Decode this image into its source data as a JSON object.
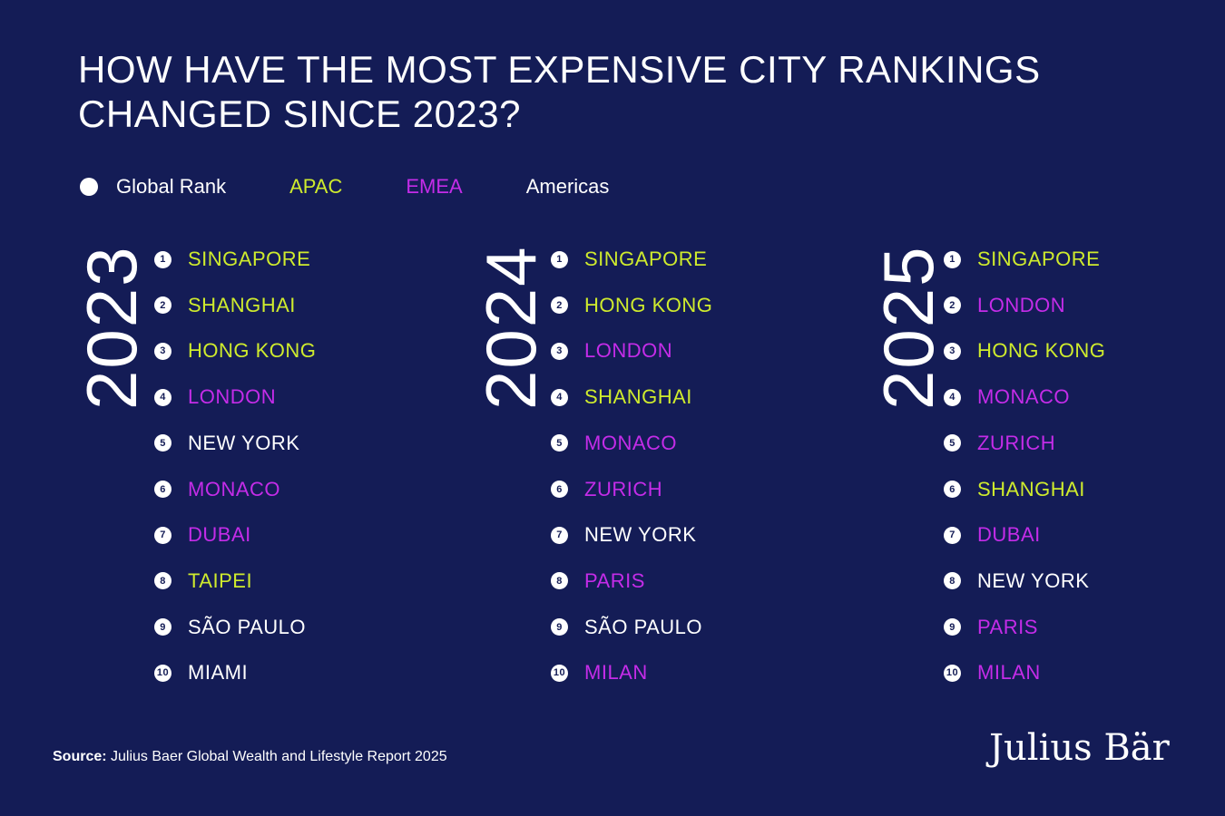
{
  "title_line1": "HOW HAVE THE MOST EXPENSIVE CITY RANKINGS",
  "title_line2": "CHANGED SINCE 2023?",
  "colors": {
    "background": "#141c56",
    "APAC": "#cfeb2d",
    "EMEA": "#c42ce8",
    "Americas": "#ffffff"
  },
  "legend": {
    "global_rank": "Global Rank",
    "apac": "APAC",
    "emea": "EMEA",
    "americas": "Americas"
  },
  "rankings": [
    {
      "year": "2023",
      "cities": [
        {
          "rank": "1",
          "name": "SINGAPORE",
          "region": "APAC"
        },
        {
          "rank": "2",
          "name": "SHANGHAI",
          "region": "APAC"
        },
        {
          "rank": "3",
          "name": "HONG KONG",
          "region": "APAC"
        },
        {
          "rank": "4",
          "name": "LONDON",
          "region": "EMEA"
        },
        {
          "rank": "5",
          "name": "NEW YORK",
          "region": "Americas"
        },
        {
          "rank": "6",
          "name": "MONACO",
          "region": "EMEA"
        },
        {
          "rank": "7",
          "name": "DUBAI",
          "region": "EMEA"
        },
        {
          "rank": "8",
          "name": "TAIPEI",
          "region": "APAC"
        },
        {
          "rank": "9",
          "name": "SÃO PAULO",
          "region": "Americas"
        },
        {
          "rank": "10",
          "name": "MIAMI",
          "region": "Americas"
        }
      ]
    },
    {
      "year": "2024",
      "cities": [
        {
          "rank": "1",
          "name": "SINGAPORE",
          "region": "APAC"
        },
        {
          "rank": "2",
          "name": "HONG KONG",
          "region": "APAC"
        },
        {
          "rank": "3",
          "name": "LONDON",
          "region": "EMEA"
        },
        {
          "rank": "4",
          "name": "SHANGHAI",
          "region": "APAC"
        },
        {
          "rank": "5",
          "name": "MONACO",
          "region": "EMEA"
        },
        {
          "rank": "6",
          "name": "ZURICH",
          "region": "EMEA"
        },
        {
          "rank": "7",
          "name": "NEW YORK",
          "region": "Americas"
        },
        {
          "rank": "8",
          "name": "PARIS",
          "region": "EMEA"
        },
        {
          "rank": "9",
          "name": "SÃO PAULO",
          "region": "Americas"
        },
        {
          "rank": "10",
          "name": "MILAN",
          "region": "EMEA"
        }
      ]
    },
    {
      "year": "2025",
      "cities": [
        {
          "rank": "1",
          "name": "SINGAPORE",
          "region": "APAC"
        },
        {
          "rank": "2",
          "name": "LONDON",
          "region": "EMEA"
        },
        {
          "rank": "3",
          "name": "HONG KONG",
          "region": "APAC"
        },
        {
          "rank": "4",
          "name": "MONACO",
          "region": "EMEA"
        },
        {
          "rank": "5",
          "name": "ZURICH",
          "region": "EMEA"
        },
        {
          "rank": "6",
          "name": "SHANGHAI",
          "region": "APAC"
        },
        {
          "rank": "7",
          "name": "DUBAI",
          "region": "EMEA"
        },
        {
          "rank": "8",
          "name": "NEW YORK",
          "region": "Americas"
        },
        {
          "rank": "9",
          "name": "PARIS",
          "region": "EMEA"
        },
        {
          "rank": "10",
          "name": "MILAN",
          "region": "EMEA"
        }
      ]
    }
  ],
  "source_label": "Source:",
  "source_text": " Julius Baer Global Wealth and Lifestyle Report 2025",
  "logo": "Julius Bär"
}
